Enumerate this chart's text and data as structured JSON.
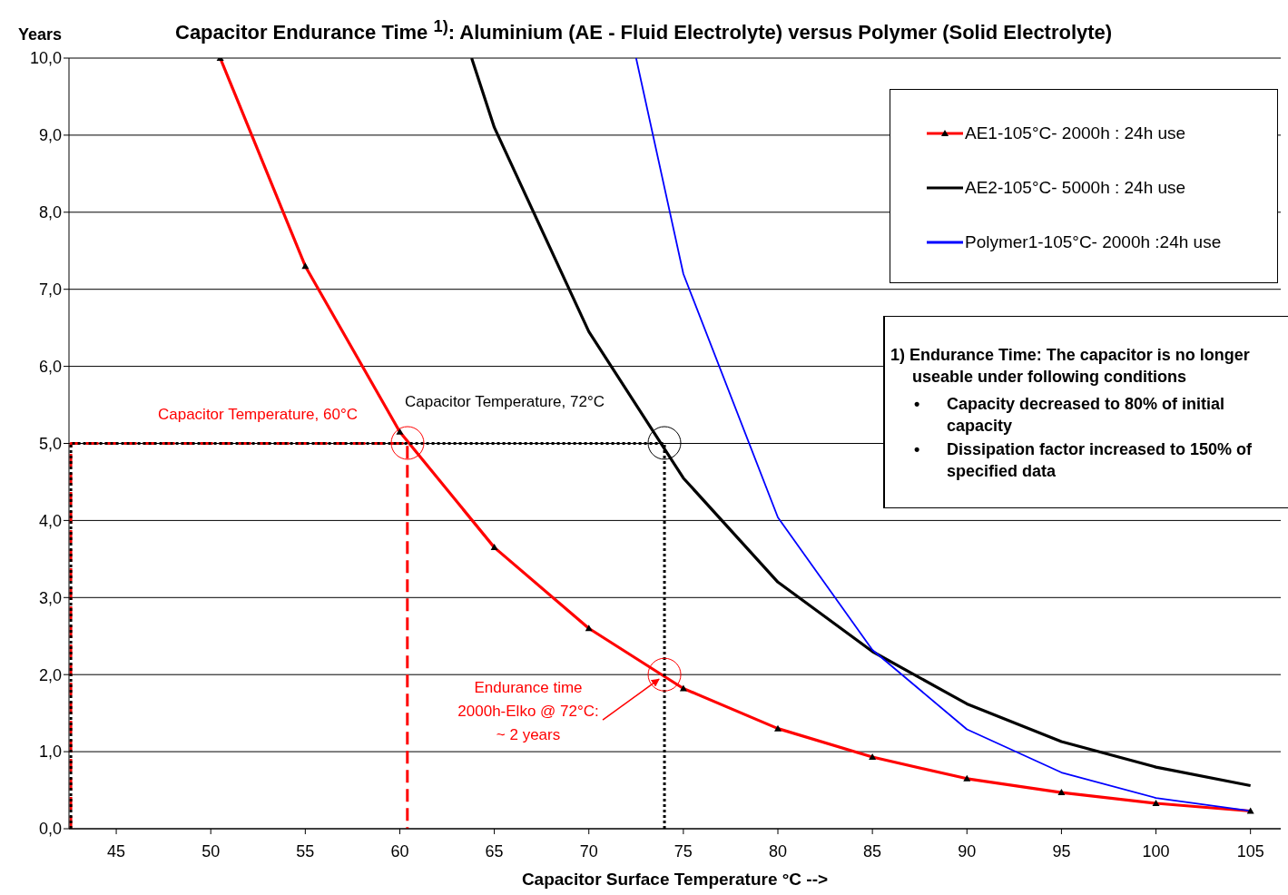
{
  "chart_data": {
    "type": "line",
    "title": "Capacitor Endurance Time $^{1)}$: Aluminium (AE - Fluid Electrolyte) versus Polymer (Solid Electrolyte)",
    "ylabel": "Years",
    "xlabel": "Capacitor Surface Temperature °C -->",
    "xlim": [
      42.5,
      106.6
    ],
    "xticks": [
      45,
      50,
      55,
      60,
      65,
      70,
      75,
      80,
      85,
      90,
      95,
      100,
      105
    ],
    "ylim": [
      0,
      10
    ],
    "yticks": [
      {
        "value": 0,
        "label": "0,0"
      },
      {
        "value": 1,
        "label": "1,0"
      },
      {
        "value": 2,
        "label": "2,0"
      },
      {
        "value": 3,
        "label": "3,0"
      },
      {
        "value": 4,
        "label": "4,0"
      },
      {
        "value": 5,
        "label": "5,0"
      },
      {
        "value": 6,
        "label": "6,0"
      },
      {
        "value": 7,
        "label": "7,0"
      },
      {
        "value": 8,
        "label": "8,0"
      },
      {
        "value": 9,
        "label": "9,0"
      },
      {
        "value": 10,
        "label": "10,0"
      }
    ],
    "grid": "y",
    "legend": "top right",
    "line_style": "solid",
    "marker": "none",
    "series": [
      {
        "name": "AE1-105°C- 2000h : 24h use",
        "color": "#ff0000",
        "marker": "triangle",
        "x": [
          50.5,
          55,
          60,
          65,
          70,
          75,
          80,
          85,
          90,
          95,
          100,
          105
        ],
        "values": [
          10.0,
          7.3,
          5.15,
          3.65,
          2.6,
          1.82,
          1.3,
          0.93,
          0.65,
          0.47,
          0.33,
          0.23
        ]
      },
      {
        "name": "AE2-105°C- 5000h : 24h use",
        "color": "#000000",
        "x": [
          63.8,
          65,
          70,
          75,
          80,
          85,
          90,
          95,
          100,
          105
        ],
        "values": [
          10.0,
          9.1,
          6.45,
          4.55,
          3.2,
          2.3,
          1.62,
          1.13,
          0.8,
          0.56
        ]
      },
      {
        "name": "Polymer1-105°C- 2000h :24h use",
        "color": "#0000ff",
        "x": [
          72.5,
          75,
          80,
          85,
          90,
          95,
          100,
          105
        ],
        "values": [
          10.0,
          7.2,
          4.04,
          2.32,
          1.29,
          0.73,
          0.4,
          0.23
        ]
      },
      {
        "color": "#ff0000",
        "line_style": "dashed",
        "x": [
          42.6,
          42.6,
          60.4,
          60.4
        ],
        "values": [
          0,
          5,
          5,
          0
        ]
      },
      {
        "color": "#000000",
        "line_style": "dotted",
        "x": [
          42.6,
          42.6,
          74,
          74
        ],
        "values": [
          0,
          5,
          5,
          0
        ]
      }
    ],
    "annotations": [
      "Capacitor Temperature, 60°C",
      "Capacitor Temperature, 72°C",
      {
        "text": "Endurance time\n2000h-Elko  @ 72°C:\n~ 2 years",
        "x": 74,
        "y": 2
      },
      "1) Endurance Time: The capacitor is no longer useable under following conditions",
      "• Capacity decreased to 80% of initial capacity",
      "• Dissipation factor increased to 150% of specified data"
    ]
  }
}
